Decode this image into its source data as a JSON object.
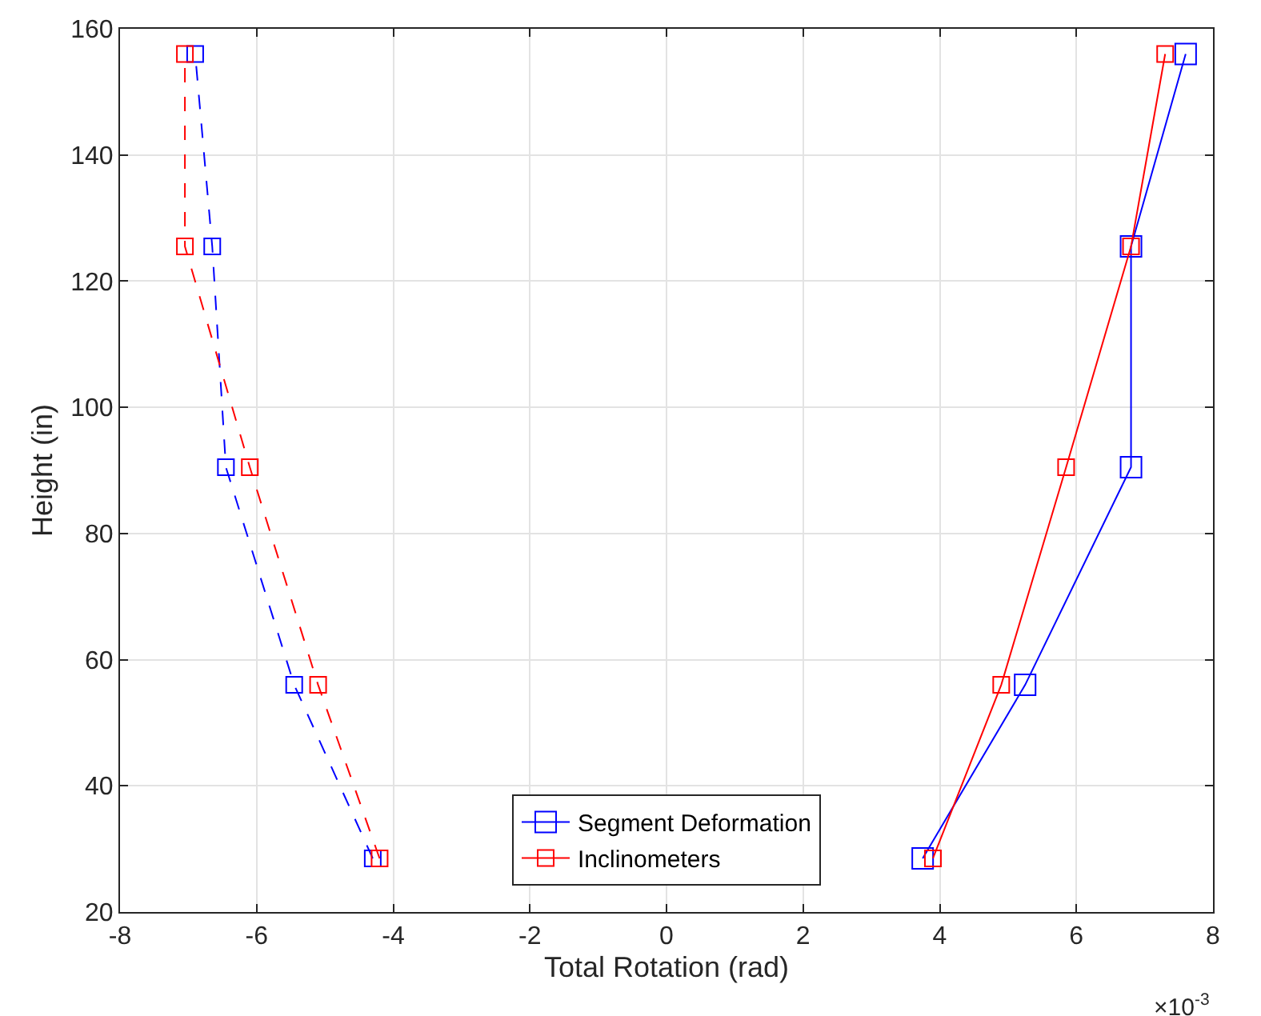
{
  "chart_data": {
    "type": "line",
    "xlabel": "Total Rotation (rad)",
    "ylabel": "Height (in)",
    "annotations": [
      "×10$^{-3}$"
    ],
    "series": [
      {
        "name": "Segment Deformation",
        "color": "#0000ff",
        "line_style": "solid",
        "x": [
          3.75,
          5.25,
          6.8,
          6.8,
          7.6
        ],
        "values": [
          28.5,
          56,
          90.5,
          125.5,
          156
        ]
      },
      {
        "name": "Inclinometers",
        "color": "#ff0000",
        "line_style": "solid",
        "x": [
          3.9,
          4.9,
          5.85,
          6.8,
          7.3
        ],
        "values": [
          28.5,
          56,
          90.5,
          125.5,
          156
        ]
      },
      {
        "color": "#0000ff",
        "line_style": "dashed",
        "x": [
          -4.3,
          -5.45,
          -6.45,
          -6.65,
          -6.9
        ],
        "values": [
          28.5,
          56,
          90.5,
          125.5,
          156
        ]
      },
      {
        "color": "#ff0000",
        "line_style": "dashed",
        "x": [
          -4.2,
          -5.1,
          -6.1,
          -7.05,
          -7.05
        ],
        "values": [
          28.5,
          56,
          90.5,
          125.5,
          156
        ]
      }
    ],
    "marker": "square",
    "grid": true,
    "legend": "bottom",
    "xlim": [
      -8,
      8
    ],
    "xticks": [
      -8,
      -6,
      -4,
      -2,
      0,
      2,
      4,
      6,
      8
    ],
    "ylim": [
      20,
      160
    ],
    "yticks": [
      20,
      40,
      60,
      80,
      100,
      120,
      140,
      160
    ]
  }
}
